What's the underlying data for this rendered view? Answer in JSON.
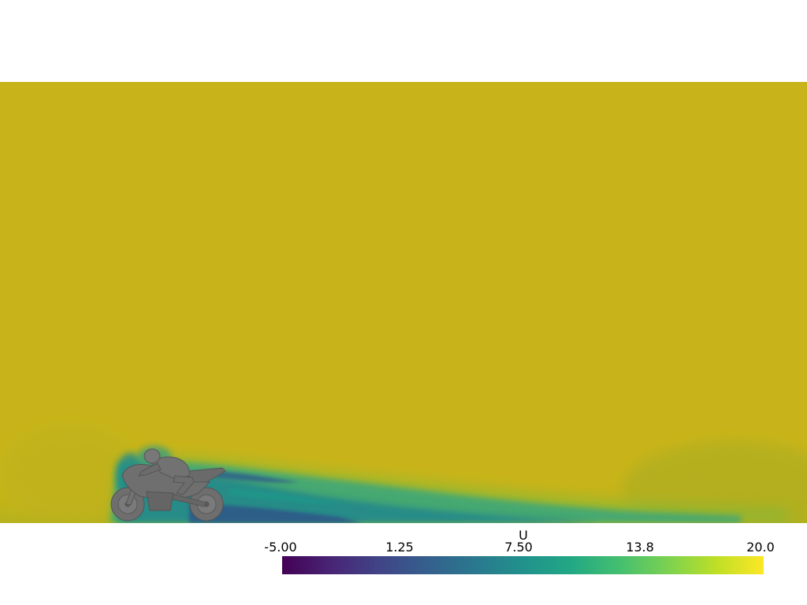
{
  "scalar_bar": {
    "title": "U",
    "range": [
      -5.0,
      20.0
    ],
    "colormap": "viridis",
    "ticks": [
      "-5.00",
      "1.25",
      "7.50",
      "13.8",
      "20.0"
    ]
  },
  "scene": {
    "background": "#ffffff",
    "field_color_free_stream": "#c8b41a",
    "object": "motorcycle-with-rider",
    "object_color": "#6b6b6b"
  }
}
